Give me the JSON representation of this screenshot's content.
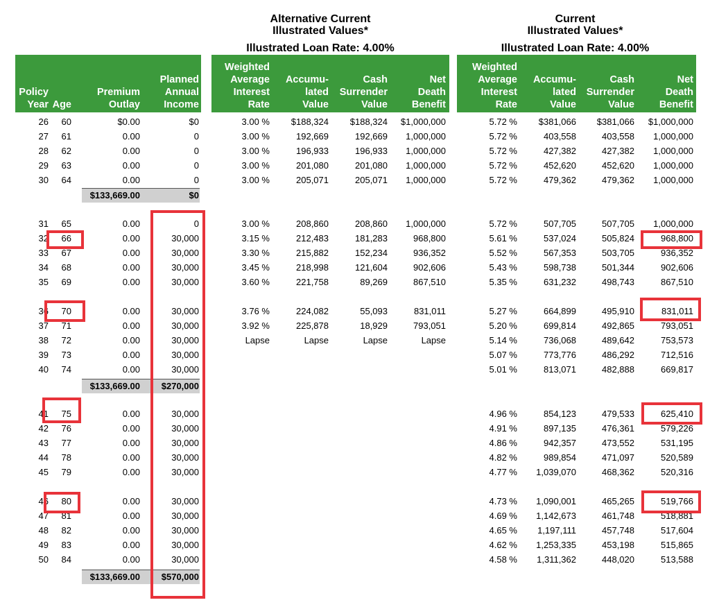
{
  "section_alt": {
    "title_line1": "Alternative Current",
    "title_line2": "Illustrated Values*",
    "loan_rate": "Illustrated Loan Rate: 4.00%"
  },
  "section_cur": {
    "title_line1": "Current",
    "title_line2": "Illustrated Values*",
    "loan_rate": "Illustrated Loan Rate: 4.00%"
  },
  "headers_left": [
    [
      "Policy",
      "Year"
    ],
    [
      "Age"
    ],
    [
      "Premium",
      "Outlay"
    ],
    [
      "Planned",
      "Annual",
      "Income"
    ]
  ],
  "headers_alt": [
    [
      "Weighted",
      "Average",
      "Interest",
      "Rate"
    ],
    [
      "Accumu-",
      "lated",
      "Value"
    ],
    [
      "Cash",
      "Surrender",
      "Value"
    ],
    [
      "Net",
      "Death",
      "Benefit"
    ]
  ],
  "headers_cur": [
    [
      "Weighted",
      "Average",
      "Interest",
      "Rate"
    ],
    [
      "Accumu-",
      "lated",
      "Value"
    ],
    [
      "Cash",
      "Surrender",
      "Value"
    ],
    [
      "Net",
      "Death",
      "Benefit"
    ]
  ],
  "rows": [
    [
      "26",
      "60",
      "$0.00",
      "$0",
      "3.00 %",
      "$188,324",
      "$188,324",
      "$1,000,000",
      "5.72 %",
      "$381,066",
      "$381,066",
      "$1,000,000"
    ],
    [
      "27",
      "61",
      "0.00",
      "0",
      "3.00 %",
      "192,669",
      "192,669",
      "1,000,000",
      "5.72 %",
      "403,558",
      "403,558",
      "1,000,000"
    ],
    [
      "28",
      "62",
      "0.00",
      "0",
      "3.00 %",
      "196,933",
      "196,933",
      "1,000,000",
      "5.72 %",
      "427,382",
      "427,382",
      "1,000,000"
    ],
    [
      "29",
      "63",
      "0.00",
      "0",
      "3.00 %",
      "201,080",
      "201,080",
      "1,000,000",
      "5.72 %",
      "452,620",
      "452,620",
      "1,000,000"
    ],
    [
      "30",
      "64",
      "0.00",
      "0",
      "3.00 %",
      "205,071",
      "205,071",
      "1,000,000",
      "5.72 %",
      "479,362",
      "479,362",
      "1,000,000"
    ],
    [
      "31",
      "65",
      "0.00",
      "0",
      "3.00 %",
      "208,860",
      "208,860",
      "1,000,000",
      "5.72 %",
      "507,705",
      "507,705",
      "1,000,000"
    ],
    [
      "32",
      "66",
      "0.00",
      "30,000",
      "3.15 %",
      "212,483",
      "181,283",
      "968,800",
      "5.61 %",
      "537,024",
      "505,824",
      "968,800"
    ],
    [
      "33",
      "67",
      "0.00",
      "30,000",
      "3.30 %",
      "215,882",
      "152,234",
      "936,352",
      "5.52 %",
      "567,353",
      "503,705",
      "936,352"
    ],
    [
      "34",
      "68",
      "0.00",
      "30,000",
      "3.45 %",
      "218,998",
      "121,604",
      "902,606",
      "5.43 %",
      "598,738",
      "501,344",
      "902,606"
    ],
    [
      "35",
      "69",
      "0.00",
      "30,000",
      "3.60 %",
      "221,758",
      "89,269",
      "867,510",
      "5.35 %",
      "631,232",
      "498,743",
      "867,510"
    ],
    [
      "36",
      "70",
      "0.00",
      "30,000",
      "3.76 %",
      "224,082",
      "55,093",
      "831,011",
      "5.27 %",
      "664,899",
      "495,910",
      "831,011"
    ],
    [
      "37",
      "71",
      "0.00",
      "30,000",
      "3.92 %",
      "225,878",
      "18,929",
      "793,051",
      "5.20 %",
      "699,814",
      "492,865",
      "793,051"
    ],
    [
      "38",
      "72",
      "0.00",
      "30,000",
      "Lapse",
      "Lapse",
      "Lapse",
      "Lapse",
      "5.14 %",
      "736,068",
      "489,642",
      "753,573"
    ],
    [
      "39",
      "73",
      "0.00",
      "30,000",
      "",
      "",
      "",
      "",
      "5.07 %",
      "773,776",
      "486,292",
      "712,516"
    ],
    [
      "40",
      "74",
      "0.00",
      "30,000",
      "",
      "",
      "",
      "",
      "5.01 %",
      "813,071",
      "482,888",
      "669,817"
    ],
    [
      "41",
      "75",
      "0.00",
      "30,000",
      "",
      "",
      "",
      "",
      "4.96 %",
      "854,123",
      "479,533",
      "625,410"
    ],
    [
      "42",
      "76",
      "0.00",
      "30,000",
      "",
      "",
      "",
      "",
      "4.91 %",
      "897,135",
      "476,361",
      "579,226"
    ],
    [
      "43",
      "77",
      "0.00",
      "30,000",
      "",
      "",
      "",
      "",
      "4.86 %",
      "942,357",
      "473,552",
      "531,195"
    ],
    [
      "44",
      "78",
      "0.00",
      "30,000",
      "",
      "",
      "",
      "",
      "4.82 %",
      "989,854",
      "471,097",
      "520,589"
    ],
    [
      "45",
      "79",
      "0.00",
      "30,000",
      "",
      "",
      "",
      "",
      "4.77 %",
      "1,039,070",
      "468,362",
      "520,316"
    ],
    [
      "46",
      "80",
      "0.00",
      "30,000",
      "",
      "",
      "",
      "",
      "4.73 %",
      "1,090,001",
      "465,265",
      "519,766"
    ],
    [
      "47",
      "81",
      "0.00",
      "30,000",
      "",
      "",
      "",
      "",
      "4.69 %",
      "1,142,673",
      "461,748",
      "518,881"
    ],
    [
      "48",
      "82",
      "0.00",
      "30,000",
      "",
      "",
      "",
      "",
      "4.65 %",
      "1,197,111",
      "457,748",
      "517,604"
    ],
    [
      "49",
      "83",
      "0.00",
      "30,000",
      "",
      "",
      "",
      "",
      "4.62 %",
      "1,253,335",
      "453,198",
      "515,865"
    ],
    [
      "50",
      "84",
      "0.00",
      "30,000",
      "",
      "",
      "",
      "",
      "4.58 %",
      "1,311,362",
      "448,020",
      "513,588"
    ]
  ],
  "subtotals": [
    {
      "premium": "$133,669.00",
      "income": "$0"
    },
    {
      "premium": "$133,669.00",
      "income": "$270,000"
    },
    {
      "premium": "$133,669.00",
      "income": "$570,000"
    }
  ],
  "colors": {
    "header_green": "#3c9a3c",
    "highlight_red": "#e8333a",
    "subtotal_gray": "#d0d0d0"
  }
}
